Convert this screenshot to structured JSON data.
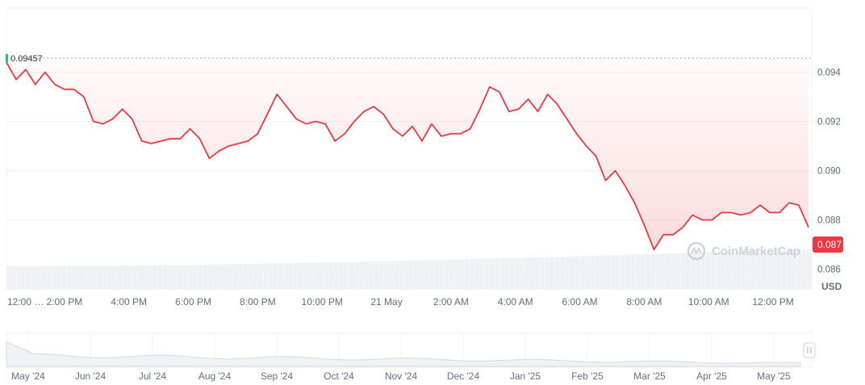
{
  "watermark": "CoinMarketCap",
  "currency_label": "USD",
  "start_price_label": "0.09457",
  "current_price_label": "0.087",
  "colors": {
    "line": "#ea3943",
    "fill": "#ea3943",
    "start_marker": "#16c784",
    "current_badge": "#ea3943",
    "grid": "#eff2f5",
    "volume": "#eff2f5",
    "text": "#616e85"
  },
  "chart_data": {
    "type": "line",
    "title": "",
    "xlabel": "",
    "ylabel": "USD",
    "ylim": [
      0.0852,
      0.0966
    ],
    "y_ticks": [
      "0.094",
      "0.092",
      "0.090",
      "0.088",
      "0.086"
    ],
    "y_tick_values": [
      0.094,
      0.092,
      0.09,
      0.088,
      0.086
    ],
    "x_ticks": [
      "12:00 …",
      "2:00 PM",
      "4:00 PM",
      "6:00 PM",
      "8:00 PM",
      "10:00 PM",
      "21 May",
      "2:00 AM",
      "4:00 AM",
      "6:00 AM",
      "8:00 AM",
      "10:00 AM",
      "12:00 PM"
    ],
    "x_tick_hours": [
      0,
      1.8,
      3.8,
      5.8,
      7.8,
      9.8,
      11.8,
      13.8,
      15.8,
      17.8,
      19.8,
      21.8,
      23.8
    ],
    "x_range_hours": [
      0,
      25.0
    ],
    "start_price": 0.09457,
    "current_price": 0.087,
    "series": [
      {
        "x": [
          0,
          0.3,
          0.6,
          0.9,
          1.2,
          1.5,
          1.8,
          2.1,
          2.4,
          2.7,
          3.0,
          3.3,
          3.6,
          3.9,
          4.2,
          4.5,
          4.8,
          5.1,
          5.4,
          5.7,
          6.0,
          6.3,
          6.6,
          6.9,
          7.2,
          7.5,
          7.8,
          8.1,
          8.4,
          8.7,
          9.0,
          9.3,
          9.6,
          9.9,
          10.2,
          10.5,
          10.8,
          11.1,
          11.4,
          11.7,
          12.0,
          12.3,
          12.6,
          12.9,
          13.2,
          13.5,
          13.8,
          14.1,
          14.4,
          14.7,
          15.0,
          15.3,
          15.6,
          15.9,
          16.2,
          16.5,
          16.8,
          17.1,
          17.4,
          17.7,
          18.0,
          18.3,
          18.6,
          18.9,
          19.2,
          19.5,
          19.8,
          20.1,
          20.4,
          20.7,
          21.0,
          21.3,
          21.6,
          21.9,
          22.2,
          22.5,
          22.8,
          23.1,
          23.4,
          23.7,
          24.0,
          24.3,
          24.6,
          24.9
        ],
        "values": [
          0.0944,
          0.0937,
          0.0941,
          0.0935,
          0.094,
          0.0935,
          0.0933,
          0.0933,
          0.093,
          0.092,
          0.0919,
          0.0921,
          0.0925,
          0.0921,
          0.0912,
          0.0911,
          0.0912,
          0.0913,
          0.0913,
          0.0917,
          0.0913,
          0.0905,
          0.0908,
          0.091,
          0.0911,
          0.0912,
          0.0915,
          0.0923,
          0.0931,
          0.0926,
          0.0921,
          0.0919,
          0.092,
          0.0919,
          0.0912,
          0.0915,
          0.092,
          0.0924,
          0.0926,
          0.0923,
          0.0917,
          0.0914,
          0.0918,
          0.0912,
          0.0919,
          0.0914,
          0.0915,
          0.0915,
          0.0917,
          0.0925,
          0.0934,
          0.0932,
          0.0924,
          0.0925,
          0.0929,
          0.0924,
          0.0931,
          0.0927,
          0.0921,
          0.0915,
          0.091,
          0.0906,
          0.0896,
          0.09,
          0.0894,
          0.0887,
          0.0878,
          0.0868,
          0.0874,
          0.0874,
          0.0877,
          0.0882,
          0.088,
          0.088,
          0.0883,
          0.0883,
          0.0882,
          0.0883,
          0.0886,
          0.0883,
          0.0883,
          0.0887,
          0.0886,
          0.0877
        ]
      }
    ]
  },
  "navigator": {
    "x_ticks": [
      "May '24",
      "Jun '24",
      "Jul '24",
      "Aug '24",
      "Sep '24",
      "Oct '24",
      "Nov '24",
      "Dec '24",
      "Jan '25",
      "Feb '25",
      "Mar '25",
      "Apr '25",
      "May '25"
    ],
    "handle_glyph": "||"
  }
}
